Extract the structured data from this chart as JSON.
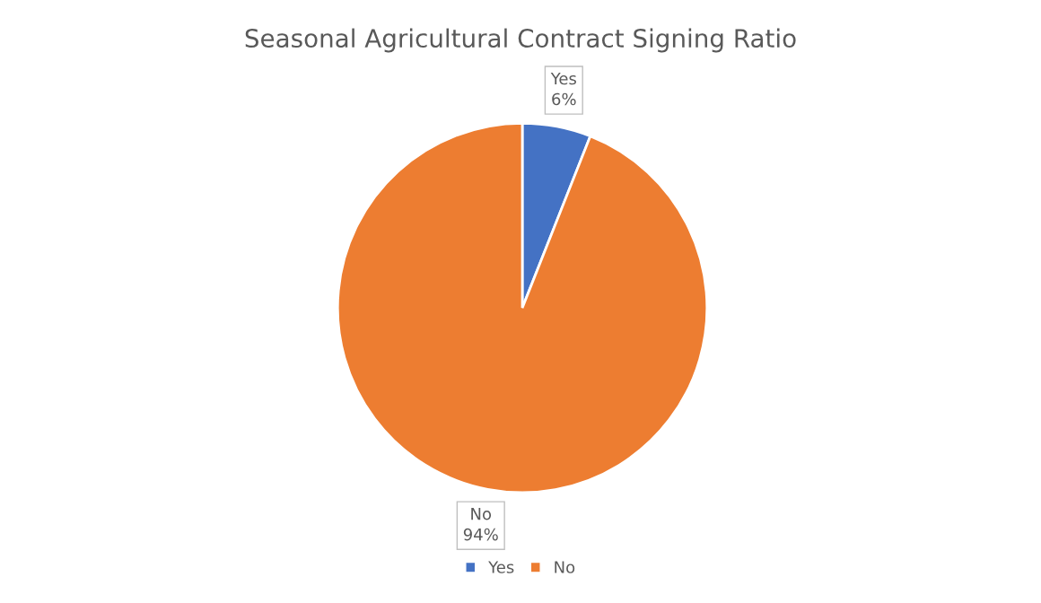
{
  "chart_data": {
    "type": "pie",
    "title": "Seasonal Agricultural Contract Signing Ratio",
    "categories": [
      "Yes",
      "No"
    ],
    "values": [
      6,
      94
    ],
    "colors": [
      "#4472c4",
      "#ed7d31"
    ],
    "value_labels": [
      "6%",
      "94%"
    ],
    "legend": "bottom"
  }
}
